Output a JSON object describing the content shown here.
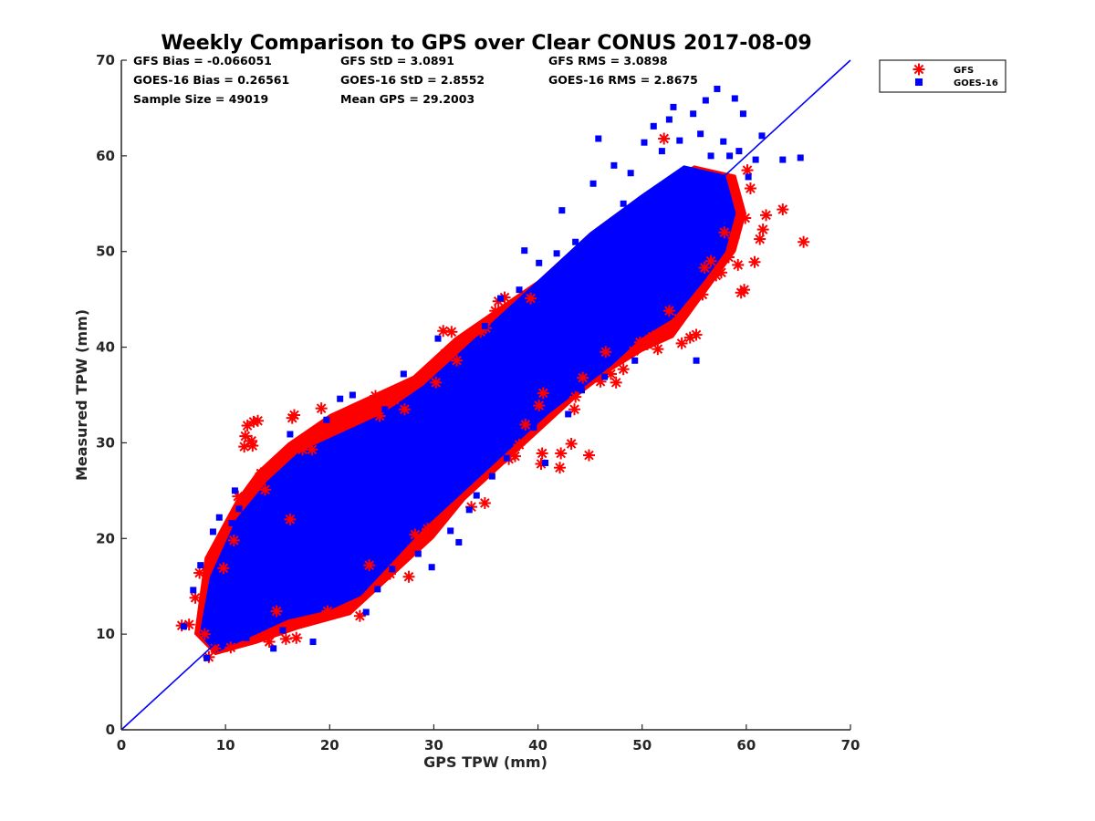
{
  "chart_data": {
    "type": "scatter",
    "title": "Weekly Comparison to GPS over Clear CONUS 2017-08-09",
    "xlabel": "GPS TPW (mm)",
    "ylabel": "Measured TPW (mm)",
    "xlim": [
      0,
      70
    ],
    "ylim": [
      0,
      70
    ],
    "xticks": [
      "0",
      "10",
      "20",
      "30",
      "40",
      "50",
      "60",
      "70"
    ],
    "yticks": [
      "0",
      "10",
      "20",
      "30",
      "40",
      "50",
      "60",
      "70"
    ],
    "grid": false,
    "legend_position": "outside-top-right",
    "stats": [
      [
        "GFS Bias = -0.066051",
        "GFS StD = 3.0891",
        "GFS RMS = 3.0898"
      ],
      [
        "GOES-16 Bias = 0.26561",
        "GOES-16 StD = 2.8552",
        "GOES-16 RMS = 2.8675"
      ],
      [
        "Sample Size = 49019",
        "Mean GPS = 29.2003",
        ""
      ]
    ],
    "reference_line": {
      "name": "1:1 line",
      "x": [
        0,
        70
      ],
      "y": [
        0,
        70
      ],
      "color": "#0000ff"
    },
    "series": [
      {
        "name": "GFS",
        "marker": "asterisk",
        "color": "#ff0000",
        "points": [
          [
            5.8,
            10.9
          ],
          [
            6.5,
            11.0
          ],
          [
            7.1,
            13.8
          ],
          [
            7.5,
            16.4
          ],
          [
            8.0,
            10.0
          ],
          [
            8.4,
            7.6
          ],
          [
            9.0,
            8.5
          ],
          [
            9.8,
            16.9
          ],
          [
            10.5,
            8.6
          ],
          [
            10.8,
            19.8
          ],
          [
            11.2,
            24.4
          ],
          [
            11.8,
            29.6
          ],
          [
            11.9,
            30.7
          ],
          [
            12.1,
            31.8
          ],
          [
            12.5,
            30.2
          ],
          [
            12.7,
            32.2
          ],
          [
            13.1,
            32.3
          ],
          [
            12.6,
            29.7
          ],
          [
            13.4,
            26.8
          ],
          [
            13.8,
            25.1
          ],
          [
            14.2,
            9.2
          ],
          [
            14.9,
            12.4
          ],
          [
            15.8,
            9.5
          ],
          [
            16.2,
            22.0
          ],
          [
            16.4,
            32.6
          ],
          [
            16.6,
            32.9
          ],
          [
            16.8,
            9.6
          ],
          [
            17.4,
            29.3
          ],
          [
            18.3,
            29.3
          ],
          [
            19.2,
            33.6
          ],
          [
            19.8,
            12.4
          ],
          [
            21.4,
            32.9
          ],
          [
            22.2,
            33.4
          ],
          [
            22.9,
            11.9
          ],
          [
            23.8,
            17.2
          ],
          [
            24.4,
            34.9
          ],
          [
            24.8,
            32.8
          ],
          [
            25.8,
            16.3
          ],
          [
            26.2,
            34.5
          ],
          [
            27.2,
            33.5
          ],
          [
            27.6,
            16.0
          ],
          [
            28.2,
            20.4
          ],
          [
            29.4,
            21.0
          ],
          [
            30.2,
            36.3
          ],
          [
            30.9,
            41.7
          ],
          [
            31.7,
            41.6
          ],
          [
            31.1,
            39.3
          ],
          [
            32.2,
            38.6
          ],
          [
            33.6,
            23.3
          ],
          [
            34.1,
            41.8
          ],
          [
            34.5,
            41.6
          ],
          [
            35.0,
            42.0
          ],
          [
            34.9,
            23.7
          ],
          [
            35.9,
            43.8
          ],
          [
            36.2,
            44.8
          ],
          [
            36.8,
            45.2
          ],
          [
            37.2,
            28.3
          ],
          [
            37.8,
            28.6
          ],
          [
            38.2,
            29.8
          ],
          [
            38.8,
            31.9
          ],
          [
            39.3,
            45.1
          ],
          [
            40.1,
            33.9
          ],
          [
            40.5,
            35.2
          ],
          [
            40.3,
            27.8
          ],
          [
            40.4,
            28.9
          ],
          [
            42.1,
            27.4
          ],
          [
            42.2,
            28.9
          ],
          [
            43.2,
            29.9
          ],
          [
            43.5,
            33.5
          ],
          [
            43.6,
            34.8
          ],
          [
            44.3,
            36.8
          ],
          [
            44.9,
            28.7
          ],
          [
            46.0,
            36.4
          ],
          [
            46.5,
            39.5
          ],
          [
            47.0,
            37.2
          ],
          [
            47.5,
            36.3
          ],
          [
            48.2,
            37.7
          ],
          [
            49.2,
            39.6
          ],
          [
            49.8,
            40.5
          ],
          [
            50.5,
            40.3
          ],
          [
            51.0,
            41.1
          ],
          [
            51.5,
            39.8
          ],
          [
            52.1,
            61.8
          ],
          [
            52.6,
            43.8
          ],
          [
            53.5,
            43.0
          ],
          [
            53.8,
            40.4
          ],
          [
            54.6,
            41.0
          ],
          [
            55.2,
            41.3
          ],
          [
            55.8,
            45.5
          ],
          [
            56.0,
            48.3
          ],
          [
            56.6,
            49.0
          ],
          [
            57.1,
            47.5
          ],
          [
            57.6,
            47.8
          ],
          [
            57.9,
            52.0
          ],
          [
            58.3,
            49.4
          ],
          [
            58.8,
            51.4
          ],
          [
            59.2,
            48.6
          ],
          [
            59.5,
            45.7
          ],
          [
            59.8,
            46.0
          ],
          [
            59.9,
            53.5
          ],
          [
            60.1,
            58.5
          ],
          [
            60.4,
            56.6
          ],
          [
            60.8,
            48.9
          ],
          [
            61.3,
            51.3
          ],
          [
            61.6,
            52.3
          ],
          [
            61.9,
            53.8
          ],
          [
            63.5,
            54.4
          ],
          [
            65.5,
            51.0
          ]
        ]
      },
      {
        "name": "GOES-16",
        "marker": "square",
        "color": "#0000ff",
        "points": [
          [
            6.0,
            10.8
          ],
          [
            6.9,
            14.6
          ],
          [
            7.6,
            17.2
          ],
          [
            8.2,
            7.5
          ],
          [
            8.8,
            20.7
          ],
          [
            9.4,
            22.2
          ],
          [
            10.6,
            21.6
          ],
          [
            10.9,
            25.0
          ],
          [
            11.3,
            23.1
          ],
          [
            12.0,
            9.6
          ],
          [
            13.5,
            11.2
          ],
          [
            14.6,
            8.5
          ],
          [
            15.5,
            10.4
          ],
          [
            16.2,
            30.9
          ],
          [
            17.7,
            13.3
          ],
          [
            18.4,
            9.2
          ],
          [
            19.7,
            32.4
          ],
          [
            21.0,
            34.6
          ],
          [
            22.2,
            35.0
          ],
          [
            22.9,
            31.1
          ],
          [
            23.5,
            12.3
          ],
          [
            24.6,
            14.7
          ],
          [
            25.3,
            33.5
          ],
          [
            26.0,
            16.8
          ],
          [
            27.1,
            37.2
          ],
          [
            28.5,
            18.4
          ],
          [
            29.2,
            34.6
          ],
          [
            29.8,
            17.0
          ],
          [
            30.4,
            40.9
          ],
          [
            31.6,
            20.8
          ],
          [
            32.4,
            19.6
          ],
          [
            33.4,
            23.0
          ],
          [
            34.1,
            24.5
          ],
          [
            34.9,
            42.2
          ],
          [
            35.6,
            26.5
          ],
          [
            36.4,
            45.1
          ],
          [
            37.0,
            28.4
          ],
          [
            38.2,
            46.0
          ],
          [
            38.7,
            50.1
          ],
          [
            39.6,
            31.6
          ],
          [
            40.1,
            48.8
          ],
          [
            40.7,
            27.9
          ],
          [
            41.4,
            36.2
          ],
          [
            41.8,
            49.8
          ],
          [
            42.3,
            54.3
          ],
          [
            42.9,
            33.0
          ],
          [
            43.6,
            51.0
          ],
          [
            44.2,
            35.5
          ],
          [
            45.3,
            57.1
          ],
          [
            45.8,
            61.8
          ],
          [
            46.4,
            36.9
          ],
          [
            47.3,
            59.0
          ],
          [
            48.2,
            55.0
          ],
          [
            48.9,
            58.2
          ],
          [
            49.3,
            38.6
          ],
          [
            50.2,
            61.4
          ],
          [
            51.1,
            63.1
          ],
          [
            51.9,
            60.5
          ],
          [
            52.6,
            63.8
          ],
          [
            53.0,
            65.1
          ],
          [
            53.6,
            61.6
          ],
          [
            54.2,
            58.4
          ],
          [
            54.9,
            64.4
          ],
          [
            55.2,
            38.6
          ],
          [
            55.6,
            62.3
          ],
          [
            56.1,
            65.8
          ],
          [
            56.6,
            60.0
          ],
          [
            57.2,
            67.0
          ],
          [
            57.8,
            61.5
          ],
          [
            58.4,
            60.0
          ],
          [
            58.9,
            66.0
          ],
          [
            59.3,
            60.5
          ],
          [
            59.7,
            64.4
          ],
          [
            60.2,
            57.8
          ],
          [
            60.9,
            59.6
          ],
          [
            61.5,
            62.1
          ],
          [
            63.5,
            59.6
          ],
          [
            65.2,
            59.8
          ]
        ]
      }
    ],
    "dense_clouds": [
      {
        "series": "GFS",
        "polygon": [
          [
            7.0,
            10.0
          ],
          [
            9.0,
            7.8
          ],
          [
            13.0,
            9.0
          ],
          [
            17.0,
            10.5
          ],
          [
            22.0,
            12.0
          ],
          [
            26.0,
            16.0
          ],
          [
            30.0,
            20.0
          ],
          [
            33.0,
            24.0
          ],
          [
            36.0,
            27.0
          ],
          [
            38.0,
            29.0
          ],
          [
            40.0,
            31.0
          ],
          [
            44.0,
            35.0
          ],
          [
            47.0,
            37.5
          ],
          [
            50.0,
            39.5
          ],
          [
            53.0,
            41.0
          ],
          [
            55.0,
            44.0
          ],
          [
            57.0,
            47.0
          ],
          [
            59.0,
            50.0
          ],
          [
            60.0,
            54.0
          ],
          [
            59.0,
            58.0
          ],
          [
            55.0,
            59.0
          ],
          [
            50.0,
            56.0
          ],
          [
            45.0,
            52.0
          ],
          [
            40.0,
            47.0
          ],
          [
            36.0,
            44.0
          ],
          [
            32.0,
            41.0
          ],
          [
            28.0,
            37.0
          ],
          [
            24.0,
            35.0
          ],
          [
            20.0,
            33.0
          ],
          [
            16.0,
            30.0
          ],
          [
            13.0,
            27.0
          ],
          [
            11.0,
            24.0
          ],
          [
            8.0,
            18.0
          ]
        ]
      },
      {
        "series": "GOES-16",
        "polygon": [
          [
            7.5,
            10.0
          ],
          [
            9.0,
            8.0
          ],
          [
            12.0,
            9.5
          ],
          [
            16.0,
            11.5
          ],
          [
            20.0,
            12.5
          ],
          [
            23.0,
            14.0
          ],
          [
            26.0,
            17.5
          ],
          [
            29.0,
            21.0
          ],
          [
            32.0,
            24.0
          ],
          [
            35.0,
            27.0
          ],
          [
            38.0,
            30.0
          ],
          [
            41.0,
            33.0
          ],
          [
            44.0,
            35.5
          ],
          [
            47.0,
            38.0
          ],
          [
            50.0,
            41.0
          ],
          [
            53.0,
            43.0
          ],
          [
            56.0,
            47.0
          ],
          [
            58.0,
            50.0
          ],
          [
            59.0,
            54.0
          ],
          [
            58.0,
            58.0
          ],
          [
            54.0,
            59.0
          ],
          [
            50.0,
            56.0
          ],
          [
            45.0,
            52.0
          ],
          [
            41.0,
            48.0
          ],
          [
            37.0,
            44.0
          ],
          [
            33.0,
            40.0
          ],
          [
            29.0,
            36.0
          ],
          [
            25.0,
            33.0
          ],
          [
            21.0,
            31.0
          ],
          [
            17.0,
            29.0
          ],
          [
            14.0,
            26.0
          ],
          [
            11.0,
            22.0
          ],
          [
            8.5,
            16.0
          ]
        ]
      }
    ]
  }
}
